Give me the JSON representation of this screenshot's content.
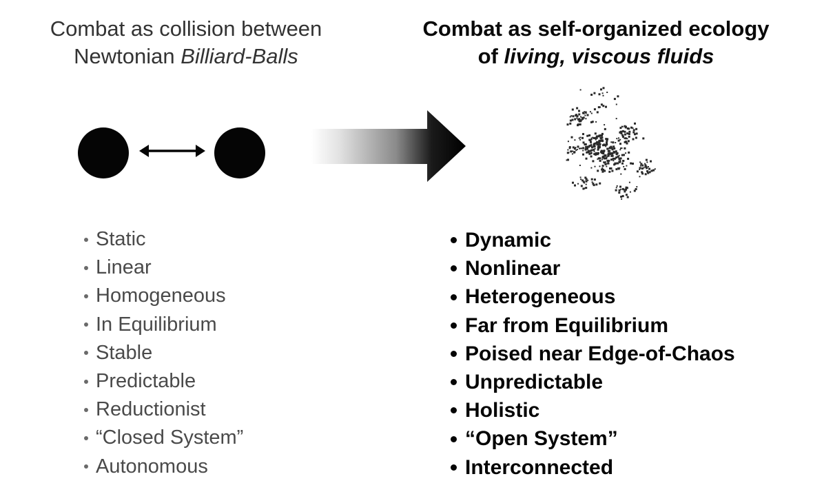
{
  "left_title": {
    "line1": "Combat as collision between",
    "line2_prefix": "Newtonian ",
    "line2_italic": "Billiard-Balls"
  },
  "right_title": {
    "line1": "Combat as self-organized ecology",
    "line2_prefix": "of ",
    "line2_italic": "living, viscous fluids"
  },
  "left_list": [
    "Static",
    "Linear",
    "Homogeneous",
    "In Equilibrium",
    "Stable",
    "Predictable",
    "Reductionist",
    "“Closed System”",
    "Autonomous"
  ],
  "right_list": [
    "Dynamic",
    "Nonlinear",
    "Heterogeneous",
    "Far from Equilibrium",
    "Poised near Edge-of-Chaos",
    "Unpredictable",
    "Holistic",
    "“Open System”",
    "Interconnected"
  ],
  "icons": {
    "billiard_ball": "billiard-ball-icon",
    "double_arrow": "double-headed-arrow-icon",
    "transition_arrow": "gradient-right-arrow-icon",
    "fluid_cloud": "scatter-cloud-icon"
  },
  "colors": {
    "ball": "#050505",
    "arrow_start": "#ffffff",
    "arrow_end": "#000000",
    "cloud_dots": "#2a2a2a"
  }
}
